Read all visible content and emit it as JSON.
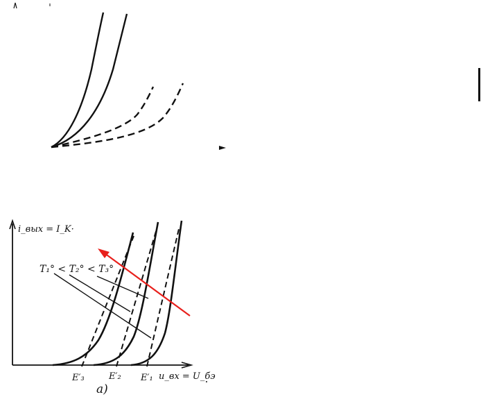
{
  "figure_top": {
    "solid_curve_count": 2,
    "dashed_curve_count": 2
  },
  "figure_bottom": {
    "y_axis_label": "i_вых = I_K·",
    "x_axis_label": "u_вх = U_бэ",
    "temperature_relation": "T₁° < T₂° < T₃°",
    "ticks": [
      "E′₃",
      "E′₂",
      "E′₁"
    ],
    "caption": "а)",
    "arrow_color": "#e8201c"
  }
}
